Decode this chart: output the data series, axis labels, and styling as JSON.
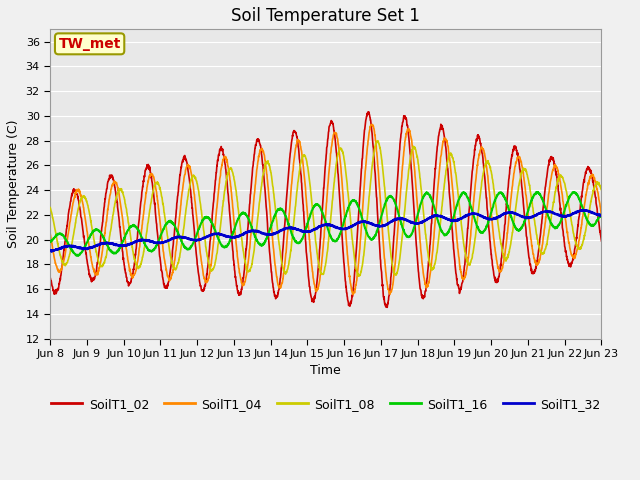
{
  "title": "Soil Temperature Set 1",
  "xlabel": "Time",
  "ylabel": "Soil Temperature (C)",
  "ylim": [
    12,
    37
  ],
  "yticks": [
    12,
    14,
    16,
    18,
    20,
    22,
    24,
    26,
    28,
    30,
    32,
    34,
    36
  ],
  "xtick_labels": [
    "Jun 8",
    "Jun 9",
    "Jun 10",
    "Jun 11",
    "Jun 12",
    "Jun 13",
    "Jun 14",
    "Jun 15",
    "Jun 16",
    "Jun 17",
    "Jun 18",
    "Jun 19",
    "Jun 20",
    "Jun 21",
    "Jun 22",
    "Jun 23"
  ],
  "series_colors": {
    "SoilT1_02": "#cc0000",
    "SoilT1_04": "#ff8800",
    "SoilT1_08": "#cccc00",
    "SoilT1_16": "#00cc00",
    "SoilT1_32": "#0000cc"
  },
  "annotation_text": "TW_met",
  "annotation_bg": "#ffffcc",
  "annotation_border": "#999900",
  "fig_bg": "#f0f0f0",
  "plot_bg": "#e8e8e8",
  "grid_color": "#ffffff",
  "title_fontsize": 12,
  "axis_fontsize": 9,
  "tick_fontsize": 8,
  "legend_fontsize": 9,
  "line_width": 1.2,
  "num_days": 15,
  "points_per_day": 144,
  "seed": 12345
}
